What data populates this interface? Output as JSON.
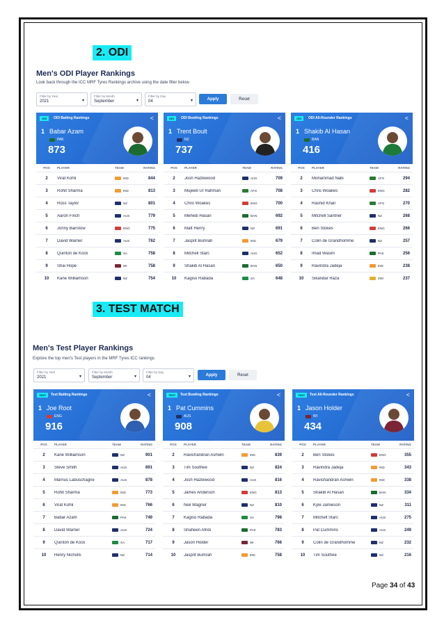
{
  "page": {
    "label_page": "Page",
    "current": "34",
    "label_of": "of",
    "total": "43"
  },
  "odi": {
    "heading": "2. ODI",
    "title": "Men's ODI Player Rankings",
    "subtitle": "Look back through the ICC MRF Tyres Rankings archive using the date filter below.",
    "filters": [
      {
        "label": "Filter by Year",
        "value": "2021"
      },
      {
        "label": "Filter by Month",
        "value": "September"
      },
      {
        "label": "Filter by Day",
        "value": "04"
      }
    ],
    "apply_label": "Apply",
    "reset_label": "Reset",
    "panels": [
      {
        "tag": "ODI",
        "title": "ODI Batting Rankings",
        "top": {
          "pos": "1",
          "name": "Babar Azam",
          "team": "PAK",
          "rating": "873",
          "flag": "#1c6b2f",
          "shirt": "#1c6b2f"
        },
        "cols": {
          "pos": "POS",
          "player": "PLAYER",
          "team": "TEAM",
          "rating": "RATING"
        },
        "rows": [
          {
            "pos": "2",
            "player": "Virat Kohli",
            "team": "IND",
            "rating": "844",
            "flag": "#f39a34"
          },
          {
            "pos": "3",
            "player": "Rohit Sharma",
            "team": "IND",
            "rating": "813",
            "flag": "#f39a34"
          },
          {
            "pos": "4",
            "player": "Ross Taylor",
            "team": "NZ",
            "rating": "801",
            "flag": "#1f2f6b"
          },
          {
            "pos": "5",
            "player": "Aaron Finch",
            "team": "AUS",
            "rating": "779",
            "flag": "#1f2f6b"
          },
          {
            "pos": "6",
            "player": "Jonny Bairstow",
            "team": "ENG",
            "rating": "775",
            "flag": "#d23b3b"
          },
          {
            "pos": "7",
            "player": "David Warner",
            "team": "AUS",
            "rating": "762",
            "flag": "#1f2f6b"
          },
          {
            "pos": "8",
            "player": "Quinton de Kock",
            "team": "SA",
            "rating": "758",
            "flag": "#1d8a45"
          },
          {
            "pos": "9",
            "player": "Shai Hope",
            "team": "WI",
            "rating": "758",
            "flag": "#7a2436"
          },
          {
            "pos": "10",
            "player": "Kane Williamson",
            "team": "NZ",
            "rating": "754",
            "flag": "#1f2f6b"
          }
        ]
      },
      {
        "tag": "ODI",
        "title": "ODI Bowling Rankings",
        "top": {
          "pos": "1",
          "name": "Trent Boult",
          "team": "NZ",
          "rating": "737",
          "flag": "#1f2f6b",
          "shirt": "#222222"
        },
        "cols": {
          "pos": "POS",
          "player": "PLAYER",
          "team": "TEAM",
          "rating": "RATING"
        },
        "rows": [
          {
            "pos": "2",
            "player": "Josh Hazlewood",
            "team": "AUS",
            "rating": "709",
            "flag": "#1f2f6b"
          },
          {
            "pos": "3",
            "player": "Mujeeb Ur Rahman",
            "team": "AFG",
            "rating": "708",
            "flag": "#2a7a34"
          },
          {
            "pos": "4",
            "player": "Chris Woakes",
            "team": "ENG",
            "rating": "700",
            "flag": "#d23b3b"
          },
          {
            "pos": "5",
            "player": "Mehedi Hasan",
            "team": "BAN",
            "rating": "692",
            "flag": "#1c6b2f"
          },
          {
            "pos": "6",
            "player": "Matt Henry",
            "team": "NZ",
            "rating": "691",
            "flag": "#1f2f6b"
          },
          {
            "pos": "7",
            "player": "Jasprit Bumrah",
            "team": "IND",
            "rating": "679",
            "flag": "#f39a34"
          },
          {
            "pos": "8",
            "player": "Mitchell Starc",
            "team": "AUS",
            "rating": "652",
            "flag": "#1f2f6b"
          },
          {
            "pos": "9",
            "player": "Shakib Al Hasan",
            "team": "BAN",
            "rating": "650",
            "flag": "#1c6b2f"
          },
          {
            "pos": "10",
            "player": "Kagiso Rabada",
            "team": "SA",
            "rating": "648",
            "flag": "#1d8a45"
          }
        ]
      },
      {
        "tag": "ODI",
        "title": "ODI All-Rounder Rankings",
        "top": {
          "pos": "1",
          "name": "Shakib Al Hasan",
          "team": "BAN",
          "rating": "416",
          "flag": "#1c6b2f",
          "shirt": "#1c7a3a"
        },
        "cols": {
          "pos": "POS",
          "player": "PLAYER",
          "team": "TEAM",
          "rating": "RATING"
        },
        "rows": [
          {
            "pos": "2",
            "player": "Mohammad Nabi",
            "team": "AFG",
            "rating": "294",
            "flag": "#2a7a34"
          },
          {
            "pos": "3",
            "player": "Chris Woakes",
            "team": "ENG",
            "rating": "282",
            "flag": "#d23b3b"
          },
          {
            "pos": "4",
            "player": "Rashid Khan",
            "team": "AFG",
            "rating": "270",
            "flag": "#2a7a34"
          },
          {
            "pos": "5",
            "player": "Mitchell Santner",
            "team": "NZ",
            "rating": "268",
            "flag": "#1f2f6b"
          },
          {
            "pos": "6",
            "player": "Ben Stokes",
            "team": "ENG",
            "rating": "266",
            "flag": "#d23b3b"
          },
          {
            "pos": "7",
            "player": "Colin de Grandhomme",
            "team": "NZ",
            "rating": "257",
            "flag": "#1f2f6b"
          },
          {
            "pos": "8",
            "player": "Imad Wasim",
            "team": "PAK",
            "rating": "256",
            "flag": "#1c6b2f"
          },
          {
            "pos": "9",
            "player": "Ravindra Jadeja",
            "team": "IND",
            "rating": "238",
            "flag": "#f39a34"
          },
          {
            "pos": "10",
            "player": "Sikandar Raza",
            "team": "ZIM",
            "rating": "237",
            "flag": "#e0b130"
          }
        ]
      }
    ]
  },
  "test": {
    "heading": "3. TEST MATCH",
    "title": "Men's Test Player Rankings",
    "subtitle": "Explore the top men's Test players in the MRF Tyres ICC rankings",
    "filters": [
      {
        "label": "Filter by Year",
        "value": "2021"
      },
      {
        "label": "Filter by Month",
        "value": "September"
      },
      {
        "label": "Filter by Day",
        "value": "04"
      }
    ],
    "apply_label": "Apply",
    "reset_label": "Reset",
    "panels": [
      {
        "tag": "TEST",
        "title": "Test Batting Rankings",
        "top": {
          "pos": "1",
          "name": "Joe Root",
          "team": "ENG",
          "rating": "916",
          "flag": "#d23b3b",
          "shirt": "#2e5fb0"
        },
        "cols": {
          "pos": "POS",
          "player": "PLAYER",
          "team": "TEAM",
          "rating": "RATING"
        },
        "rows": [
          {
            "pos": "2",
            "player": "Kane Williamson",
            "team": "NZ",
            "rating": "901",
            "flag": "#1f2f6b"
          },
          {
            "pos": "3",
            "player": "Steve Smith",
            "team": "AUS",
            "rating": "891",
            "flag": "#1f2f6b"
          },
          {
            "pos": "4",
            "player": "Marnus Labuschagne",
            "team": "AUS",
            "rating": "878",
            "flag": "#1f2f6b"
          },
          {
            "pos": "5",
            "player": "Rohit Sharma",
            "team": "IND",
            "rating": "773",
            "flag": "#f39a34"
          },
          {
            "pos": "6",
            "player": "Virat Kohli",
            "team": "IND",
            "rating": "766",
            "flag": "#f39a34"
          },
          {
            "pos": "7",
            "player": "Babar Azam",
            "team": "PAK",
            "rating": "749",
            "flag": "#1c6b2f"
          },
          {
            "pos": "8",
            "player": "David Warner",
            "team": "AUS",
            "rating": "724",
            "flag": "#1f2f6b"
          },
          {
            "pos": "9",
            "player": "Quinton de Kock",
            "team": "SA",
            "rating": "717",
            "flag": "#1d8a45"
          },
          {
            "pos": "10",
            "player": "Henry Nicholls",
            "team": "NZ",
            "rating": "714",
            "flag": "#1f2f6b"
          }
        ]
      },
      {
        "tag": "TEST",
        "title": "Test Bowling Rankings",
        "top": {
          "pos": "1",
          "name": "Pat Cummins",
          "team": "AUS",
          "rating": "908",
          "flag": "#1f2f6b",
          "shirt": "#e8c33a"
        },
        "cols": {
          "pos": "POS",
          "player": "PLAYER",
          "team": "TEAM",
          "rating": "RATING"
        },
        "rows": [
          {
            "pos": "2",
            "player": "Ravichandran Ashwin",
            "team": "IND",
            "rating": "839",
            "flag": "#f39a34"
          },
          {
            "pos": "3",
            "player": "Tim Southee",
            "team": "NZ",
            "rating": "824",
            "flag": "#1f2f6b"
          },
          {
            "pos": "4",
            "player": "Josh Hazlewood",
            "team": "AUS",
            "rating": "816",
            "flag": "#1f2f6b"
          },
          {
            "pos": "5",
            "player": "James Anderson",
            "team": "ENG",
            "rating": "813",
            "flag": "#d23b3b"
          },
          {
            "pos": "6",
            "player": "Neil Wagner",
            "team": "NZ",
            "rating": "810",
            "flag": "#1f2f6b"
          },
          {
            "pos": "7",
            "player": "Kagiso Rabada",
            "team": "SA",
            "rating": "798",
            "flag": "#1d8a45"
          },
          {
            "pos": "8",
            "player": "Shaheen Afridi",
            "team": "PAK",
            "rating": "783",
            "flag": "#1c6b2f"
          },
          {
            "pos": "9",
            "player": "Jason Holder",
            "team": "WI",
            "rating": "766",
            "flag": "#7a2436"
          },
          {
            "pos": "10",
            "player": "Jasprit Bumrah",
            "team": "IND",
            "rating": "758",
            "flag": "#f39a34"
          }
        ]
      },
      {
        "tag": "TEST",
        "title": "Test All-Rounder Rankings",
        "top": {
          "pos": "1",
          "name": "Jason Holder",
          "team": "WI",
          "rating": "434",
          "flag": "#7a2436",
          "shirt": "#7a2436"
        },
        "cols": {
          "pos": "POS",
          "player": "PLAYER",
          "team": "TEAM",
          "rating": "RATING"
        },
        "rows": [
          {
            "pos": "2",
            "player": "Ben Stokes",
            "team": "ENG",
            "rating": "355",
            "flag": "#d23b3b"
          },
          {
            "pos": "3",
            "player": "Ravindra Jadeja",
            "team": "IND",
            "rating": "343",
            "flag": "#f39a34"
          },
          {
            "pos": "4",
            "player": "Ravichandran Ashwin",
            "team": "IND",
            "rating": "338",
            "flag": "#f39a34"
          },
          {
            "pos": "5",
            "player": "Shakib Al Hasan",
            "team": "BAN",
            "rating": "334",
            "flag": "#1c6b2f"
          },
          {
            "pos": "6",
            "player": "Kyle Jamieson",
            "team": "NZ",
            "rating": "311",
            "flag": "#1f2f6b"
          },
          {
            "pos": "7",
            "player": "Mitchell Starc",
            "team": "AUS",
            "rating": "275",
            "flag": "#1f2f6b"
          },
          {
            "pos": "8",
            "player": "Pat Cummins",
            "team": "AUS",
            "rating": "249",
            "flag": "#1f2f6b"
          },
          {
            "pos": "9",
            "player": "Colin de Grandhomme",
            "team": "NZ",
            "rating": "232",
            "flag": "#1f2f6b"
          },
          {
            "pos": "10",
            "player": "Tim Southee",
            "team": "NZ",
            "rating": "216",
            "flag": "#1f2f6b"
          }
        ]
      }
    ]
  }
}
